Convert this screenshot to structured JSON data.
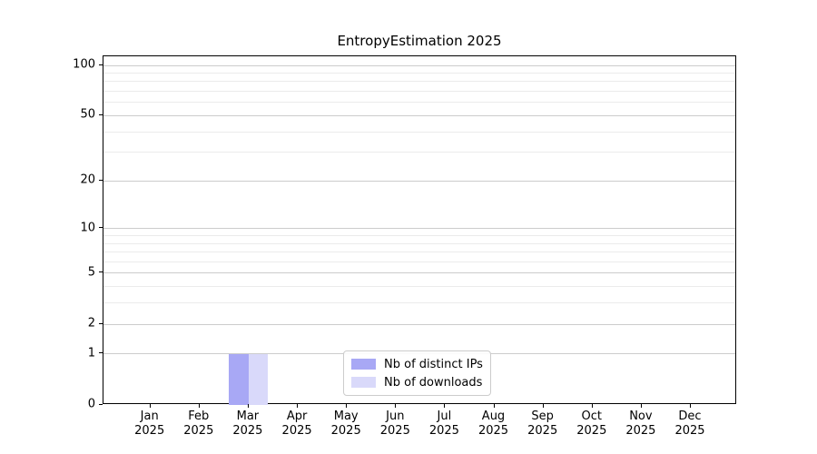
{
  "chart_data": {
    "type": "bar",
    "title": "EntropyEstimation 2025",
    "categories": [
      "Jan",
      "Feb",
      "Mar",
      "Apr",
      "May",
      "Jun",
      "Jul",
      "Aug",
      "Sep",
      "Oct",
      "Nov",
      "Dec"
    ],
    "category_year": "2025",
    "series": [
      {
        "name": "Nb of distinct IPs",
        "color": "#a8a8f5",
        "values": [
          0,
          0,
          1,
          0,
          0,
          0,
          0,
          0,
          0,
          0,
          0,
          0
        ]
      },
      {
        "name": "Nb of downloads",
        "color": "#d9d9fa",
        "values": [
          0,
          0,
          1,
          0,
          0,
          0,
          0,
          0,
          0,
          0,
          0,
          0
        ]
      }
    ],
    "y_axis": {
      "scale": "log1p",
      "major_ticks": [
        0,
        1,
        2,
        5,
        10,
        20,
        50,
        100
      ],
      "minor_ticks": [
        3,
        4,
        6,
        7,
        8,
        9,
        30,
        40,
        60,
        70,
        80,
        90
      ],
      "min": 0,
      "max": 113.3
    },
    "legend_position": "lower center",
    "grid": {
      "orientation": "horizontal",
      "major_color": "#cccccc",
      "minor_color": "#ebebeb"
    }
  }
}
